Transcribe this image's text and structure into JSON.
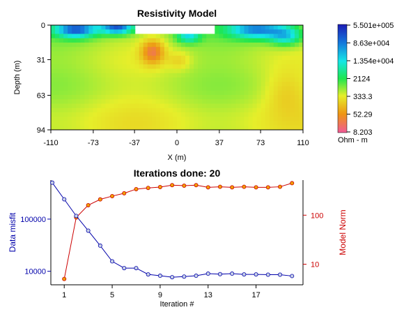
{
  "chart_data": [
    {
      "type": "heatmap",
      "title": "Resistivity Model",
      "xlabel": "X (m)",
      "ylabel": "Depth (m)",
      "xlim": [
        -110,
        110
      ],
      "ylim": [
        0,
        94
      ],
      "y_inverted": true,
      "x_ticks": [
        "-110",
        "-73",
        "-37",
        "0",
        "37",
        "73",
        "110"
      ],
      "y_ticks": [
        "0",
        "31",
        "63",
        "94"
      ],
      "colorbar": {
        "unit": "Ohm - m",
        "labels": [
          "5.501e+005",
          "8.63e+004",
          "1.354e+004",
          "2124",
          "333.3",
          "52.29",
          "8.203"
        ],
        "colors": [
          "#1c1cb4",
          "#1478dc",
          "#14e6e6",
          "#1ee650",
          "#e6ee2a",
          "#ee9414",
          "#f05a96"
        ],
        "scale": "log"
      },
      "model_summary": "Predominantly 300-600 ohm-m background (yellow-green); high-resistivity near-surface bodies (up to ~5e5) beneath x=-100..-40 and x=40..100; conductive low (~50 ohm-m) centred near x=-20, depth 15-35 m; blank unmodelled zone at surface between x=-35 and x=30."
    },
    {
      "type": "line",
      "title": "Iterations done: 20",
      "xlabel": "Iteration #",
      "x_ticks": [
        "1",
        "5",
        "9",
        "13",
        "17"
      ],
      "x": [
        0,
        1,
        2,
        3,
        4,
        5,
        6,
        7,
        8,
        9,
        10,
        11,
        12,
        13,
        14,
        15,
        16,
        17,
        18,
        19,
        20
      ],
      "series": [
        {
          "name": "Data misfit",
          "axis": "left",
          "color": "#0000aa",
          "scale": "log",
          "y_ticks": [
            "100000",
            "10000"
          ],
          "values": [
            500000,
            240000,
            115000,
            60000,
            31000,
            15500,
            11500,
            11500,
            8700,
            8200,
            7700,
            7900,
            8200,
            9000,
            8800,
            9000,
            8700,
            8700,
            8600,
            8600,
            8100
          ]
        },
        {
          "name": "Model Norm",
          "axis": "right",
          "color": "#cc0000",
          "scale": "log",
          "y_ticks": [
            "100",
            "10"
          ],
          "values": [
            null,
            5,
            90,
            160,
            210,
            245,
            280,
            340,
            360,
            375,
            410,
            400,
            410,
            370,
            380,
            370,
            380,
            370,
            370,
            380,
            450
          ]
        }
      ]
    }
  ]
}
